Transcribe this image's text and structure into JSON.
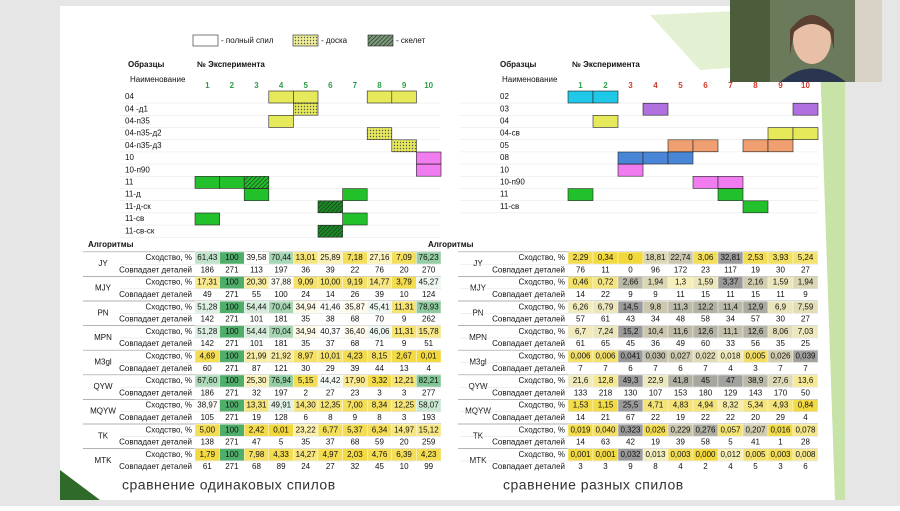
{
  "legend": [
    {
      "label": "- полный спил",
      "pattern": "plain"
    },
    {
      "label": "- доска",
      "pattern": "dots"
    },
    {
      "label": "- скелет",
      "pattern": "hatch"
    }
  ],
  "tables": [
    {
      "samples_header": "Образцы",
      "experiment_header": "№ Эксперимента",
      "name_header": "Наименование",
      "experiments": [
        1,
        2,
        3,
        4,
        5,
        6,
        7,
        8,
        9,
        10
      ],
      "experiment_colors": [
        "#2e9e4a",
        "#2e9e4a",
        "#2e9e4a",
        "#2e9e4a",
        "#2e9e4a",
        "#2e9e4a",
        "#2e9e4a",
        "#2e9e4a",
        "#2e9e4a",
        "#2e9e4a"
      ],
      "samples": [
        {
          "name": "04",
          "cells": [
            {
              "exp": 4,
              "color": "#e6ea5a",
              "pattern": "plain"
            },
            {
              "exp": 5,
              "color": "#e6ea5a",
              "pattern": "plain"
            },
            {
              "exp": 8,
              "color": "#e6ea5a",
              "pattern": "plain"
            },
            {
              "exp": 9,
              "color": "#e6ea5a",
              "pattern": "plain"
            }
          ]
        },
        {
          "name": "04 -д1",
          "cells": [
            {
              "exp": 5,
              "color": "#e6ea5a",
              "pattern": "dots"
            }
          ]
        },
        {
          "name": "04-п35",
          "cells": [
            {
              "exp": 4,
              "color": "#e6ea5a",
              "pattern": "plain"
            }
          ]
        },
        {
          "name": "04-п35-д2",
          "cells": [
            {
              "exp": 8,
              "color": "#e6ea5a",
              "pattern": "dots"
            }
          ]
        },
        {
          "name": "04-п35-д3",
          "cells": [
            {
              "exp": 9,
              "color": "#e6ea5a",
              "pattern": "dots"
            }
          ]
        },
        {
          "name": "10",
          "cells": [
            {
              "exp": 10,
              "color": "#f07cf0",
              "pattern": "plain"
            }
          ]
        },
        {
          "name": "10-п90",
          "cells": [
            {
              "exp": 10,
              "color": "#f07cf0",
              "pattern": "plain"
            }
          ]
        },
        {
          "name": "11",
          "cells": [
            {
              "exp": 1,
              "color": "#22c02a",
              "pattern": "plain"
            },
            {
              "exp": 2,
              "color": "#22c02a",
              "pattern": "plain"
            },
            {
              "exp": 3,
              "color": "#22c02a",
              "pattern": "hatch"
            }
          ]
        },
        {
          "name": "11-д",
          "cells": [
            {
              "exp": 3,
              "color": "#22c02a",
              "pattern": "plain"
            },
            {
              "exp": 7,
              "color": "#22c02a",
              "pattern": "plain"
            }
          ]
        },
        {
          "name": "11-д-ск",
          "cells": [
            {
              "exp": 6,
              "color": "#1a8a24",
              "pattern": "hatch"
            }
          ]
        },
        {
          "name": "11-св",
          "cells": [
            {
              "exp": 1,
              "color": "#22c02a",
              "pattern": "plain"
            },
            {
              "exp": 7,
              "color": "#22c02a",
              "pattern": "plain"
            }
          ]
        },
        {
          "name": "11-св-ск",
          "cells": [
            {
              "exp": 6,
              "color": "#1a8a24",
              "pattern": "hatch"
            }
          ]
        }
      ],
      "algorithms_header": "Алгоритмы",
      "row_labels": [
        "Сходство, %",
        "Совпадает деталей"
      ],
      "scale": [
        "#f2d83a",
        "#ffffff",
        "#4fae6a"
      ],
      "algorithms": [
        {
          "name": "JY",
          "similarity": [
            "61,43",
            "100",
            "39,58",
            "70,44",
            "13,01",
            "25,89",
            "7,18",
            "27,16",
            "7,09",
            "76,23"
          ],
          "details": [
            186,
            271,
            113,
            197,
            36,
            39,
            22,
            76,
            20,
            270
          ]
        },
        {
          "name": "MJY",
          "similarity": [
            "17,31",
            "100",
            "20,30",
            "37,88",
            "9,09",
            "10,00",
            "9,19",
            "14,77",
            "3,79",
            "45,27"
          ],
          "details": [
            49,
            271,
            55,
            100,
            24,
            14,
            26,
            39,
            10,
            124
          ]
        },
        {
          "name": "PN",
          "similarity": [
            "51,28",
            "100",
            "54,44",
            "70,04",
            "34,94",
            "41,46",
            "35,87",
            "45,41",
            "11,31",
            "78,93"
          ],
          "details": [
            142,
            271,
            101,
            181,
            35,
            38,
            68,
            70,
            9,
            262
          ]
        },
        {
          "name": "MPN",
          "similarity": [
            "51,28",
            "100",
            "54,44",
            "70,04",
            "34,94",
            "40,37",
            "36,40",
            "46,06",
            "11,31",
            "15,78"
          ],
          "details": [
            142,
            271,
            101,
            181,
            35,
            37,
            68,
            71,
            9,
            51
          ]
        },
        {
          "name": "M3gl",
          "similarity": [
            "4,69",
            "100",
            "21,99",
            "21,92",
            "8,97",
            "10,01",
            "4,23",
            "8,15",
            "2,67",
            "0,01"
          ],
          "details": [
            60,
            271,
            87,
            121,
            30,
            29,
            39,
            44,
            13,
            4
          ]
        },
        {
          "name": "QYW",
          "similarity": [
            "67,60",
            "100",
            "25,30",
            "76,94",
            "5,15",
            "44,42",
            "17,90",
            "3,32",
            "12,21",
            "82,21"
          ],
          "details": [
            186,
            271,
            32,
            197,
            2,
            27,
            23,
            3,
            3,
            277
          ]
        },
        {
          "name": "MQYW",
          "similarity": [
            "38,97",
            "100",
            "13,31",
            "49,91",
            "14,30",
            "12,35",
            "7,00",
            "8,34",
            "12,25",
            "58,07"
          ],
          "details": [
            105,
            271,
            19,
            128,
            6,
            8,
            9,
            8,
            3,
            193
          ]
        },
        {
          "name": "TK",
          "similarity": [
            "5,00",
            "100",
            "2,42",
            "0,01",
            "23,22",
            "6,77",
            "5,37",
            "6,34",
            "14,97",
            "15,12"
          ],
          "details": [
            138,
            271,
            47,
            5,
            35,
            37,
            68,
            59,
            20,
            259
          ]
        },
        {
          "name": "MTK",
          "similarity": [
            "1,79",
            "100",
            "7,98",
            "4,33",
            "14,27",
            "4,97",
            "2,03",
            "4,76",
            "6,39",
            "4,23"
          ],
          "details": [
            61,
            271,
            68,
            89,
            24,
            27,
            32,
            45,
            10,
            99
          ]
        }
      ],
      "caption": "сравнение одинаковых спилов"
    },
    {
      "samples_header": "Образцы",
      "experiment_header": "№ Эксперимента",
      "name_header": "Наименование",
      "experiments": [
        1,
        2,
        3,
        4,
        5,
        6,
        7,
        8,
        9,
        10
      ],
      "experiment_colors": [
        "#2e9e4a",
        "#2e9e4a",
        "#d03a2a",
        "#d03a2a",
        "#d03a2a",
        "#d03a2a",
        "#d03a2a",
        "#d03a2a",
        "#d03a2a",
        "#d03a2a"
      ],
      "samples": [
        {
          "name": "02",
          "cells": [
            {
              "exp": 1,
              "color": "#1ec8e6",
              "pattern": "plain"
            },
            {
              "exp": 2,
              "color": "#1ec8e6",
              "pattern": "plain"
            }
          ]
        },
        {
          "name": "03",
          "cells": [
            {
              "exp": 4,
              "color": "#b070e0",
              "pattern": "plain"
            },
            {
              "exp": 10,
              "color": "#b070e0",
              "pattern": "plain"
            }
          ]
        },
        {
          "name": "04",
          "cells": [
            {
              "exp": 2,
              "color": "#e6ea5a",
              "pattern": "plain"
            }
          ]
        },
        {
          "name": "04-св",
          "cells": [
            {
              "exp": 9,
              "color": "#e6ea5a",
              "pattern": "plain"
            },
            {
              "exp": 10,
              "color": "#e6ea5a",
              "pattern": "plain"
            }
          ]
        },
        {
          "name": "05",
          "cells": [
            {
              "exp": 5,
              "color": "#f0a070",
              "pattern": "plain"
            },
            {
              "exp": 6,
              "color": "#f0a070",
              "pattern": "plain"
            },
            {
              "exp": 8,
              "color": "#f0a070",
              "pattern": "plain"
            },
            {
              "exp": 9,
              "color": "#f0a070",
              "pattern": "plain"
            }
          ]
        },
        {
          "name": "08",
          "cells": [
            {
              "exp": 3,
              "color": "#4a86d8",
              "pattern": "plain"
            },
            {
              "exp": 4,
              "color": "#4a86d8",
              "pattern": "plain"
            },
            {
              "exp": 5,
              "color": "#4a86d8",
              "pattern": "plain"
            }
          ]
        },
        {
          "name": "10",
          "cells": [
            {
              "exp": 3,
              "color": "#f07cf0",
              "pattern": "plain"
            }
          ]
        },
        {
          "name": "10-п90",
          "cells": [
            {
              "exp": 6,
              "color": "#f07cf0",
              "pattern": "plain"
            },
            {
              "exp": 7,
              "color": "#f07cf0",
              "pattern": "plain"
            }
          ]
        },
        {
          "name": "11",
          "cells": [
            {
              "exp": 1,
              "color": "#22c02a",
              "pattern": "plain"
            },
            {
              "exp": 7,
              "color": "#22c02a",
              "pattern": "plain"
            }
          ]
        },
        {
          "name": "11-св",
          "cells": [
            {
              "exp": 8,
              "color": "#22c02a",
              "pattern": "plain"
            }
          ]
        }
      ],
      "algorithms_header": "Алгоритмы",
      "row_labels": [
        "Сходство, %",
        "Совпадает деталей"
      ],
      "scale": [
        "#f2d83a",
        "#f6f0c0",
        "#9a9a9a"
      ],
      "algorithms": [
        {
          "name": "JY",
          "similarity": [
            "2,29",
            "0,34",
            "0",
            "18,81",
            "22,74",
            "3,06",
            "32,81",
            "2,53",
            "3,93",
            "5,24"
          ],
          "details": [
            76,
            11,
            0,
            96,
            172,
            23,
            117,
            19,
            30,
            27
          ]
        },
        {
          "name": "MJY",
          "similarity": [
            "0,46",
            "0,72",
            "2,66",
            "1,94",
            "1,3",
            "1,59",
            "3,37",
            "2,16",
            "1,59",
            "1,94"
          ],
          "details": [
            14,
            22,
            9,
            9,
            11,
            15,
            11,
            15,
            11,
            9
          ]
        },
        {
          "name": "PN",
          "similarity": [
            "6,26",
            "6,79",
            "14,5",
            "9,8",
            "11,3",
            "12,2",
            "11,4",
            "12,9",
            "6,9",
            "7,59"
          ],
          "details": [
            57,
            61,
            43,
            34,
            48,
            58,
            34,
            57,
            30,
            27
          ]
        },
        {
          "name": "MPN",
          "similarity": [
            "6,7",
            "7,24",
            "15,2",
            "10,4",
            "11,6",
            "12,6",
            "11,1",
            "12,6",
            "8,06",
            "7,03"
          ],
          "details": [
            61,
            65,
            45,
            36,
            49,
            60,
            33,
            56,
            35,
            25
          ]
        },
        {
          "name": "M3gl",
          "similarity": [
            "0,006",
            "0,006",
            "0,041",
            "0,030",
            "0,027",
            "0,022",
            "0,018",
            "0,005",
            "0,026",
            "0,039"
          ],
          "details": [
            7,
            7,
            6,
            7,
            6,
            7,
            4,
            3,
            7,
            7
          ]
        },
        {
          "name": "QYW",
          "similarity": [
            "21,6",
            "12,8",
            "49,3",
            "22,9",
            "41,8",
            "45",
            "47",
            "38,9",
            "27,6",
            "13,6"
          ],
          "details": [
            133,
            218,
            130,
            107,
            153,
            180,
            129,
            143,
            170,
            50
          ]
        },
        {
          "name": "MQYW",
          "similarity": [
            "1,53",
            "1,15",
            "25,5",
            "4,71",
            "4,83",
            "4,94",
            "8,32",
            "5,34",
            "4,93",
            "0,84"
          ],
          "details": [
            14,
            21,
            67,
            22,
            19,
            22,
            22,
            20,
            29,
            4
          ]
        },
        {
          "name": "TK",
          "similarity": [
            "0,019",
            "0,040",
            "0,323",
            "0,026",
            "0,229",
            "0,276",
            "0,057",
            "0,207",
            "0,016",
            "0,078"
          ],
          "details": [
            14,
            63,
            42,
            19,
            39,
            58,
            5,
            41,
            1,
            28
          ]
        },
        {
          "name": "MTK",
          "similarity": [
            "0,001",
            "0,001",
            "0,032",
            "0,013",
            "0,003",
            "0,000",
            "0,012",
            "0,005",
            "0,003",
            "0,008"
          ],
          "details": [
            3,
            3,
            9,
            8,
            4,
            2,
            4,
            5,
            3,
            6
          ]
        }
      ],
      "caption": "сравнение разных спилов"
    }
  ]
}
